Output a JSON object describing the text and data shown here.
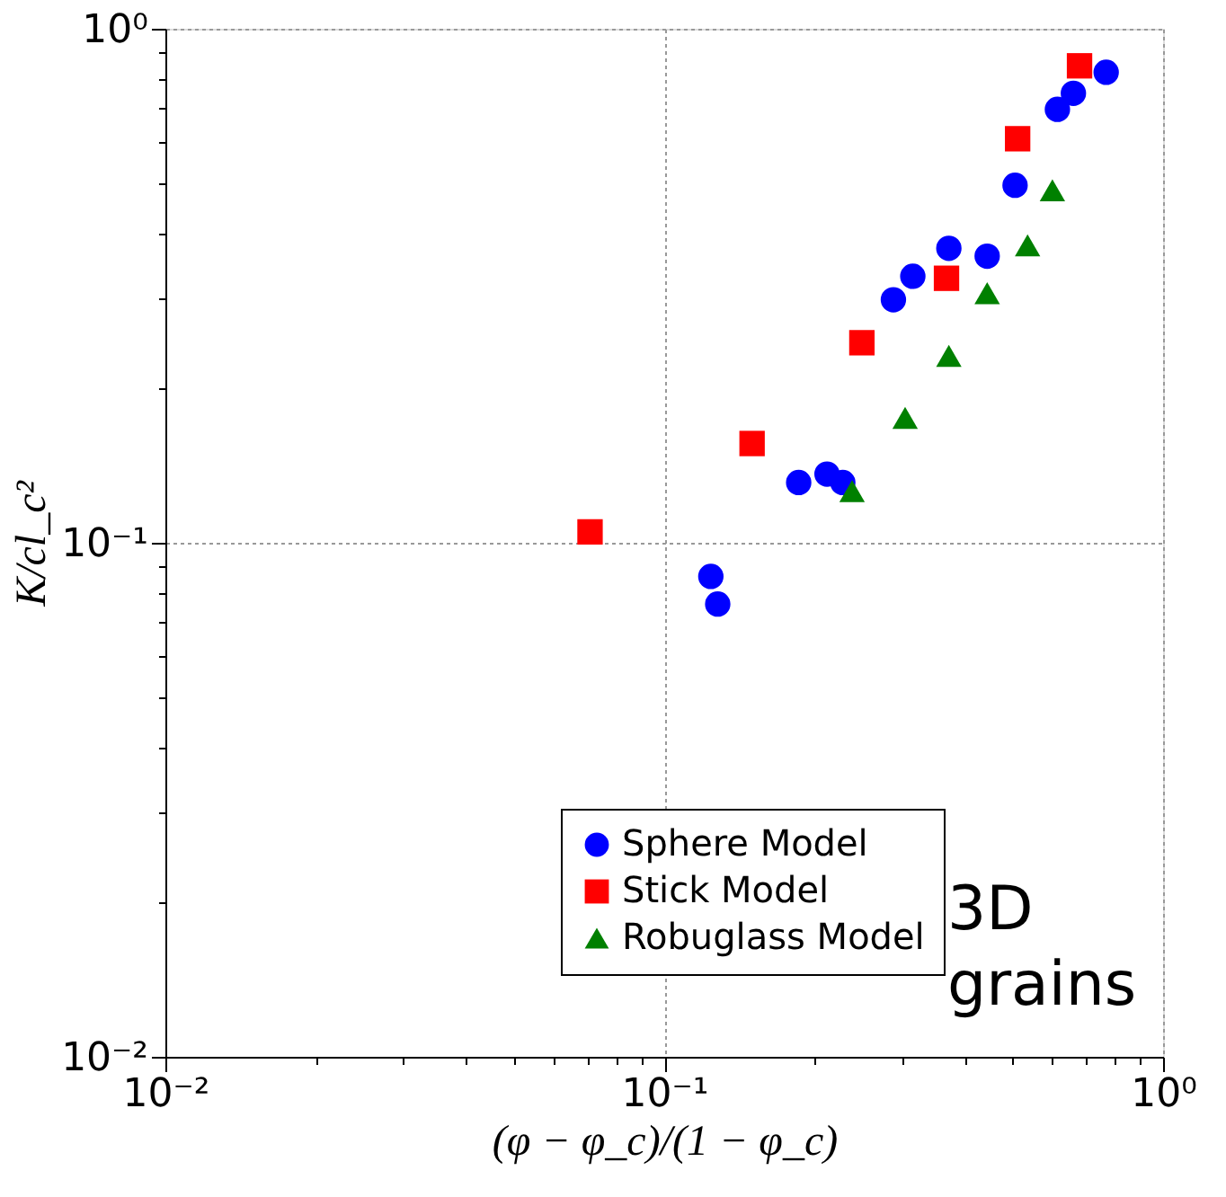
{
  "chart_data": {
    "type": "scatter",
    "xlabel": "(φ − φ_c)/(1 − φ_c)",
    "ylabel": "K/cl_c²",
    "log": "xy",
    "xlim": [
      0.01,
      1
    ],
    "ylim": [
      0.01,
      1
    ],
    "xticks": [
      {
        "value": 0.01,
        "label": "10⁻²"
      },
      {
        "value": 0.02,
        "label": null
      },
      {
        "value": 0.03,
        "label": null
      },
      {
        "value": 0.04,
        "label": null
      },
      {
        "value": 0.05,
        "label": null
      },
      {
        "value": 0.06,
        "label": null
      },
      {
        "value": 0.07,
        "label": null
      },
      {
        "value": 0.08,
        "label": null
      },
      {
        "value": 0.09,
        "label": null
      },
      {
        "value": 0.1,
        "label": "10⁻¹"
      },
      {
        "value": 0.2,
        "label": null
      },
      {
        "value": 0.3,
        "label": null
      },
      {
        "value": 0.4,
        "label": null
      },
      {
        "value": 0.5,
        "label": null
      },
      {
        "value": 0.6,
        "label": null
      },
      {
        "value": 0.7,
        "label": null
      },
      {
        "value": 0.8,
        "label": null
      },
      {
        "value": 0.9,
        "label": null
      },
      {
        "value": 1,
        "label": "10⁰"
      }
    ],
    "yticks": [
      {
        "value": 0.01,
        "label": "10⁻²"
      },
      {
        "value": 0.02,
        "label": null
      },
      {
        "value": 0.03,
        "label": null
      },
      {
        "value": 0.04,
        "label": null
      },
      {
        "value": 0.05,
        "label": null
      },
      {
        "value": 0.06,
        "label": null
      },
      {
        "value": 0.07,
        "label": null
      },
      {
        "value": 0.08,
        "label": null
      },
      {
        "value": 0.09,
        "label": null
      },
      {
        "value": 0.1,
        "label": "10⁻¹"
      },
      {
        "value": 0.2,
        "label": null
      },
      {
        "value": 0.3,
        "label": null
      },
      {
        "value": 0.4,
        "label": null
      },
      {
        "value": 0.5,
        "label": null
      },
      {
        "value": 0.6,
        "label": null
      },
      {
        "value": 0.7,
        "label": null
      },
      {
        "value": 0.8,
        "label": null
      },
      {
        "value": 0.9,
        "label": null
      },
      {
        "value": 1,
        "label": "10⁰"
      }
    ],
    "grid": true,
    "legend": "bottom right",
    "annotations": [
      "3D grains"
    ],
    "series": [
      {
        "name": "Sphere Model",
        "color": "#0000ff",
        "marker": "circle",
        "x": [
          0.769,
          0.661,
          0.614,
          0.505,
          0.372,
          0.444,
          0.315,
          0.288,
          0.186,
          0.212,
          0.228,
          0.124,
          0.128
        ],
        "values": [
          0.823,
          0.749,
          0.697,
          0.496,
          0.374,
          0.361,
          0.33,
          0.297,
          0.131,
          0.136,
          0.131,
          0.086,
          0.076
        ]
      },
      {
        "name": "Stick Model",
        "color": "#ff0000",
        "marker": "square",
        "x": [
          0.68,
          0.511,
          0.368,
          0.249,
          0.15,
          0.071
        ],
        "values": [
          0.847,
          0.611,
          0.327,
          0.245,
          0.156,
          0.105
        ]
      },
      {
        "name": "Robuglass Model",
        "color": "#008000",
        "marker": "triangle",
        "x": [
          0.6,
          0.535,
          0.444,
          0.372,
          0.304,
          0.238
        ],
        "values": [
          0.485,
          0.379,
          0.306,
          0.231,
          0.175,
          0.126
        ]
      }
    ]
  }
}
